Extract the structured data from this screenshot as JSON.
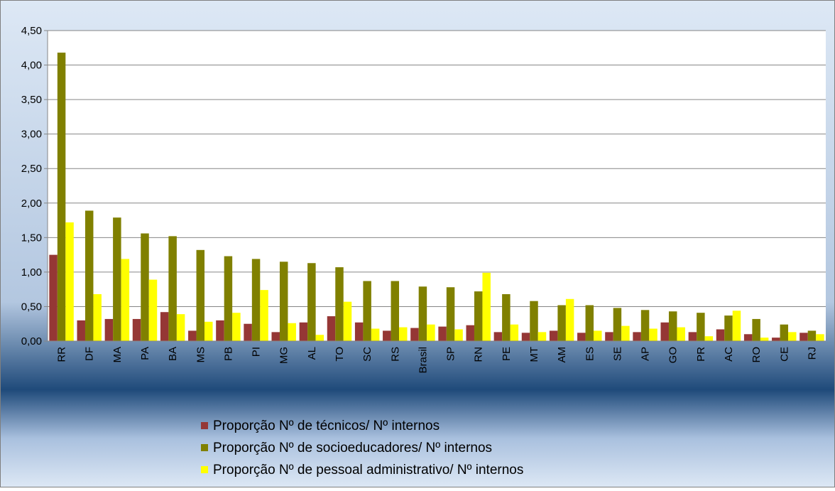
{
  "chart_data": {
    "type": "bar",
    "categories": [
      "RR",
      "DF",
      "MA",
      "PA",
      "BA",
      "MS",
      "PB",
      "PI",
      "MG",
      "AL",
      "TO",
      "SC",
      "RS",
      "Brasil",
      "SP",
      "RN",
      "PE",
      "MT",
      "AM",
      "ES",
      "SE",
      "AP",
      "GO",
      "PR",
      "AC",
      "RO",
      "CE",
      "RJ"
    ],
    "series": [
      {
        "name": "Proporção Nº de técnicos/ Nº internos",
        "color": "#953735",
        "values": [
          1.25,
          0.3,
          0.32,
          0.32,
          0.42,
          0.15,
          0.3,
          0.25,
          0.13,
          0.27,
          0.36,
          0.27,
          0.15,
          0.19,
          0.21,
          0.23,
          0.13,
          0.12,
          0.15,
          0.12,
          0.13,
          0.13,
          0.27,
          0.13,
          0.17,
          0.1,
          0.05,
          0.12
        ]
      },
      {
        "name": "Proporção Nº de socioeducadores/ Nº internos",
        "color": "#808000",
        "values": [
          4.18,
          1.89,
          1.79,
          1.56,
          1.52,
          1.32,
          1.23,
          1.19,
          1.15,
          1.13,
          1.07,
          0.87,
          0.87,
          0.79,
          0.78,
          0.72,
          0.68,
          0.58,
          0.52,
          0.52,
          0.48,
          0.45,
          0.43,
          0.41,
          0.37,
          0.32,
          0.24,
          0.15
        ]
      },
      {
        "name": "Proporção Nº de pessoal administrativo/ Nº internos",
        "color": "#ffff00",
        "values": [
          1.72,
          0.68,
          1.19,
          0.89,
          0.39,
          0.28,
          0.41,
          0.74,
          0.26,
          0.09,
          0.57,
          0.18,
          0.2,
          0.24,
          0.17,
          0.99,
          0.24,
          0.13,
          0.61,
          0.15,
          0.22,
          0.18,
          0.2,
          0.07,
          0.44,
          0.05,
          0.13,
          0.1
        ]
      }
    ],
    "ylim": [
      0,
      4.5
    ],
    "yticks": [
      {
        "value": 0,
        "label": "0,00"
      },
      {
        "value": 0.5,
        "label": "0,50"
      },
      {
        "value": 1,
        "label": "1,00"
      },
      {
        "value": 1.5,
        "label": "1,50"
      },
      {
        "value": 2,
        "label": "2,00"
      },
      {
        "value": 2.5,
        "label": "2,50"
      },
      {
        "value": 3,
        "label": "3,00"
      },
      {
        "value": 3.5,
        "label": "3,50"
      },
      {
        "value": 4,
        "label": "4,00"
      },
      {
        "value": 4.5,
        "label": "4,50"
      }
    ],
    "grid": true
  }
}
